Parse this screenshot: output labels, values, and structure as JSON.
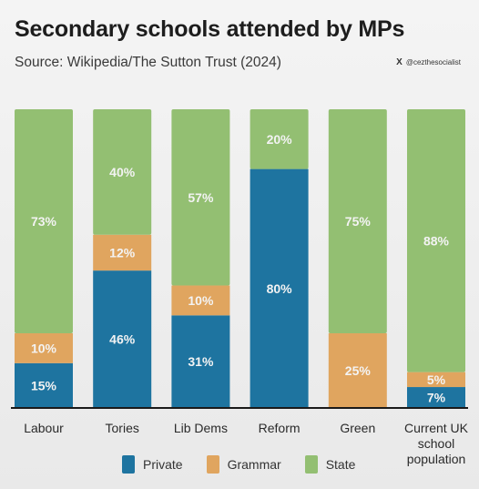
{
  "header": {
    "title": "Secondary schools attended by MPs",
    "subtitle": "Source: Wikipedia/The Sutton Trust (2024)",
    "watermark": "@cezthesocialist"
  },
  "colors": {
    "private": "#1e74a0",
    "grammar": "#e0a55f",
    "state": "#93bf72",
    "axis": "#1a1a1a",
    "label": "#f3f3f3"
  },
  "chart_data": {
    "type": "bar",
    "stacked": true,
    "categories": [
      "Labour",
      "Tories",
      "Lib Dems",
      "Reform",
      "Green",
      "Current UK school population"
    ],
    "series": [
      {
        "name": "Private",
        "values": [
          15,
          46,
          31,
          80,
          0,
          7
        ]
      },
      {
        "name": "Grammar",
        "values": [
          10,
          12,
          10,
          0,
          25,
          5
        ]
      },
      {
        "name": "State",
        "values": [
          73,
          40,
          57,
          20,
          75,
          88
        ]
      }
    ],
    "ylim": [
      0,
      100
    ],
    "legend": "bottom",
    "grid": false
  }
}
